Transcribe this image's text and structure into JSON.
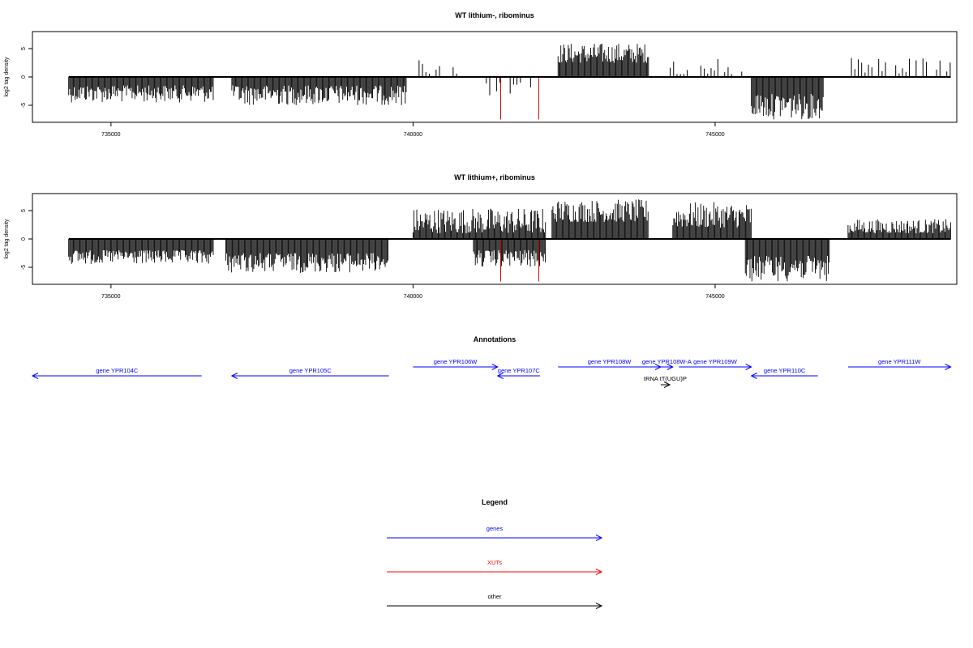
{
  "colors": {
    "gene": "#0000ff",
    "xut": "#ff0000",
    "other": "#000000",
    "signal": "#000000",
    "highlight": "#cc0000"
  },
  "panels": [
    {
      "title": "WT lithium-, ribominus",
      "ylabel": "log2 tag density",
      "xlim": [
        733700,
        749000
      ],
      "ylim": [
        -8,
        8
      ],
      "yticks": [
        -5,
        0,
        5
      ],
      "xticks": [
        735000,
        740000,
        745000
      ],
      "xtick_labels": [
        "735000",
        "740000",
        "745000"
      ]
    },
    {
      "title": "WT lithium+, ribominus",
      "ylabel": "log2 tag density",
      "xlim": [
        733700,
        749000
      ],
      "ylim": [
        -8,
        8
      ],
      "yticks": [
        -5,
        0,
        5
      ],
      "xticks": [
        735000,
        740000,
        745000
      ],
      "xtick_labels": [
        "735000",
        "740000",
        "745000"
      ]
    }
  ],
  "chart_data": [
    {
      "type": "bar",
      "title": "WT lithium-, ribominus",
      "ylabel": "log2 tag density",
      "xlim": [
        733700,
        749000
      ],
      "ylim": [
        -8,
        8
      ],
      "signal_regions": [
        {
          "start": 734300,
          "end": 736700,
          "strand": "minus",
          "min": 1.5,
          "max": 4.5
        },
        {
          "start": 737000,
          "end": 739900,
          "strand": "minus",
          "min": 1.5,
          "max": 5.0
        },
        {
          "start": 740100,
          "end": 741000,
          "strand": "plus",
          "min": 0.5,
          "max": 3.0,
          "sparse": true
        },
        {
          "start": 741100,
          "end": 742000,
          "strand": "minus",
          "min": 1.0,
          "max": 3.5,
          "sparse": true
        },
        {
          "start": 742400,
          "end": 743900,
          "strand": "plus",
          "min": 2.5,
          "max": 6.0
        },
        {
          "start": 744200,
          "end": 745500,
          "strand": "plus",
          "min": 0.5,
          "max": 3.5,
          "sparse": true
        },
        {
          "start": 745600,
          "end": 746800,
          "strand": "minus",
          "min": 3.0,
          "max": 7.5
        },
        {
          "start": 747200,
          "end": 748900,
          "strand": "plus",
          "min": 0.5,
          "max": 3.5,
          "sparse": true
        }
      ],
      "highlight_spikes": [
        {
          "x": 741450,
          "y": -7.5
        },
        {
          "x": 742080,
          "y": -7.5
        }
      ]
    },
    {
      "type": "bar",
      "title": "WT lithium+, ribominus",
      "ylabel": "log2 tag density",
      "xlim": [
        733700,
        749000
      ],
      "ylim": [
        -8,
        8
      ],
      "signal_regions": [
        {
          "start": 734300,
          "end": 736700,
          "strand": "minus",
          "min": 2.0,
          "max": 4.5
        },
        {
          "start": 736900,
          "end": 739600,
          "strand": "minus",
          "min": 2.5,
          "max": 6.0
        },
        {
          "start": 740000,
          "end": 742200,
          "strand": "plus",
          "min": 1.0,
          "max": 5.5
        },
        {
          "start": 741000,
          "end": 742200,
          "strand": "minus",
          "min": 2.0,
          "max": 5.0
        },
        {
          "start": 742300,
          "end": 743900,
          "strand": "plus",
          "min": 3.0,
          "max": 7.0
        },
        {
          "start": 744300,
          "end": 745600,
          "strand": "plus",
          "min": 2.0,
          "max": 6.5
        },
        {
          "start": 745500,
          "end": 746900,
          "strand": "minus",
          "min": 3.0,
          "max": 7.5
        },
        {
          "start": 747200,
          "end": 748900,
          "strand": "plus",
          "min": 1.0,
          "max": 3.5
        }
      ],
      "highlight_spikes": [
        {
          "x": 741450,
          "y": -7.5
        },
        {
          "x": 742080,
          "y": -7.5
        }
      ]
    }
  ],
  "annotations": {
    "title": "Annotations",
    "xlim": [
      733700,
      749000
    ],
    "features": [
      {
        "label": "gene YPR104C",
        "start": 733700,
        "end": 736500,
        "strand": "-",
        "kind": "gene",
        "row": 1
      },
      {
        "label": "gene YPR105C",
        "start": 737000,
        "end": 739600,
        "strand": "-",
        "kind": "gene",
        "row": 1
      },
      {
        "label": "gene YPR106W",
        "start": 740000,
        "end": 741400,
        "strand": "+",
        "kind": "gene",
        "row": 0
      },
      {
        "label": "gene YPR107C",
        "start": 741400,
        "end": 742100,
        "strand": "-",
        "kind": "gene",
        "row": 1
      },
      {
        "label": "gene YPR108W",
        "start": 742400,
        "end": 744100,
        "strand": "+",
        "kind": "gene",
        "row": 0
      },
      {
        "label": "gene YPR108W-A",
        "start": 744100,
        "end": 744300,
        "strand": "+",
        "kind": "gene",
        "row": 0
      },
      {
        "label": "gene YPR109W",
        "start": 744400,
        "end": 745600,
        "strand": "+",
        "kind": "gene",
        "row": 0
      },
      {
        "label": "gene YPR110C",
        "start": 745600,
        "end": 746700,
        "strand": "-",
        "kind": "gene",
        "row": 1
      },
      {
        "label": "gene YPR111W",
        "start": 747200,
        "end": 748900,
        "strand": "+",
        "kind": "gene",
        "row": 0
      },
      {
        "label": "tRNA tT(UGU)P",
        "start": 744100,
        "end": 744250,
        "strand": "+",
        "kind": "other",
        "row": 2
      }
    ]
  },
  "legend": {
    "title": "Legend",
    "items": [
      {
        "label": "genes",
        "kind": "gene"
      },
      {
        "label": "XUTs",
        "kind": "xut"
      },
      {
        "label": "other",
        "kind": "other"
      }
    ]
  }
}
